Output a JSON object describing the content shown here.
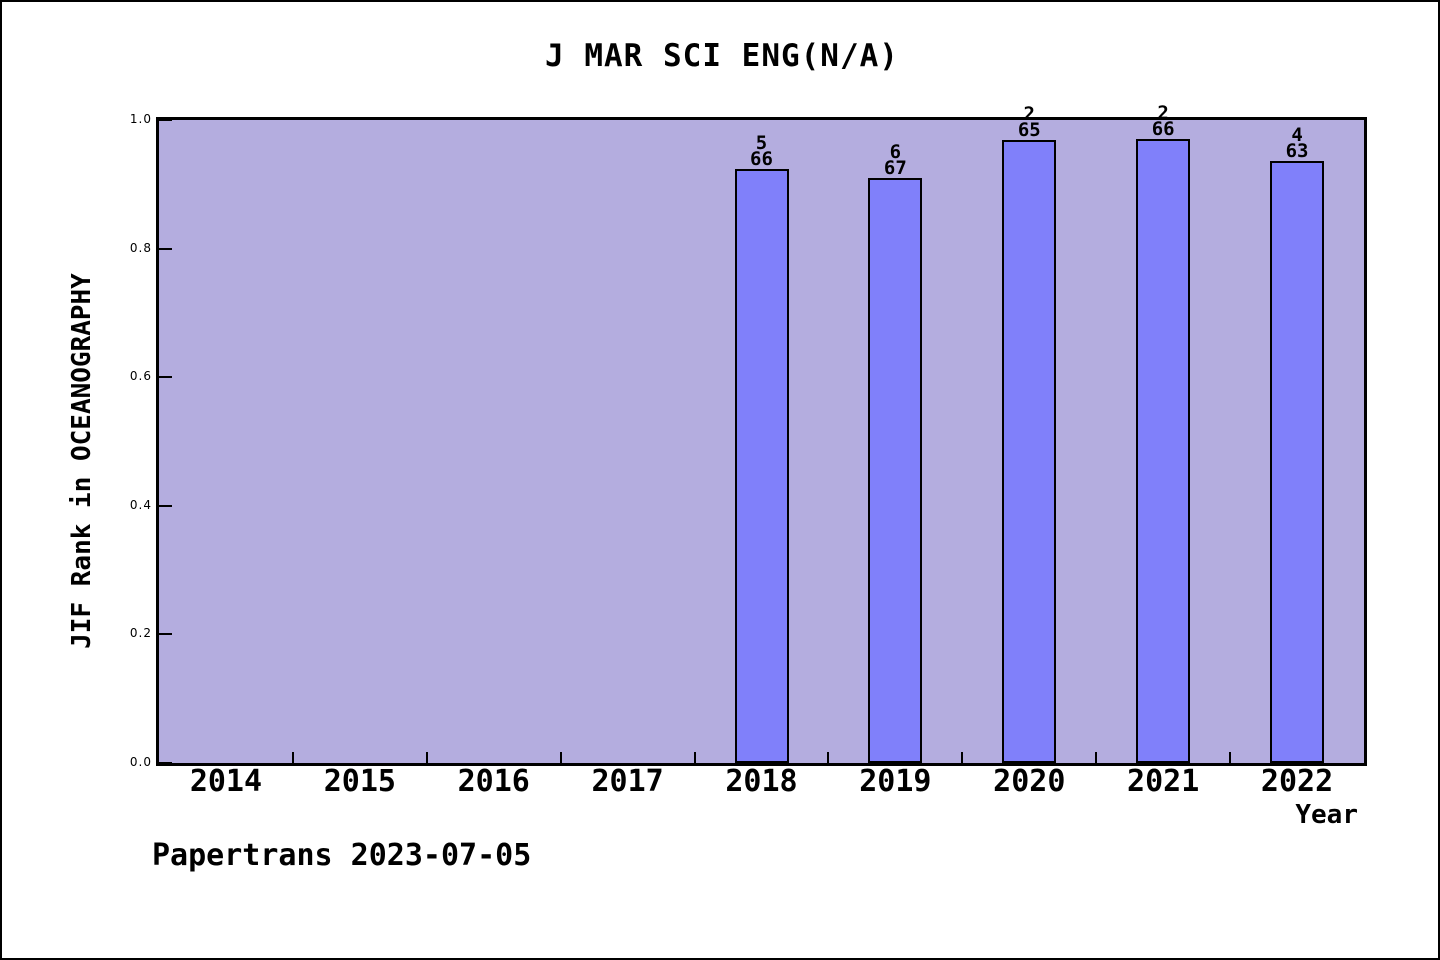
{
  "footer": "Papertrans 2023-07-05",
  "chart_data": {
    "type": "bar",
    "title": "J MAR SCI ENG(N/A)",
    "xlabel": "Year",
    "ylabel": "JIF Rank in OCEANOGRAPHY",
    "categories": [
      "2014",
      "2015",
      "2016",
      "2017",
      "2018",
      "2019",
      "2020",
      "2021",
      "2022"
    ],
    "series": [
      {
        "name": "JIF Rank in OCEANOGRAPHY",
        "values": [
          null,
          null,
          null,
          null,
          0.9242,
          0.9104,
          0.9692,
          0.9697,
          0.9365
        ]
      }
    ],
    "bar_annotations": [
      null,
      null,
      null,
      null,
      "5/66",
      "6/67",
      "2/65",
      "2/66",
      "4/63"
    ],
    "ylim": [
      0.0,
      1.0
    ],
    "yticks": [
      "0.0",
      "0.2",
      "0.4",
      "0.6",
      "0.8",
      "1.0"
    ],
    "grid": "off",
    "legend": "none",
    "colors": {
      "bar_fill": "#8080fa",
      "bar_edge": "#000000",
      "plot_background": "#b4addf",
      "axis": "#000000",
      "text": "#000000",
      "page_background": "#ffffff"
    }
  }
}
